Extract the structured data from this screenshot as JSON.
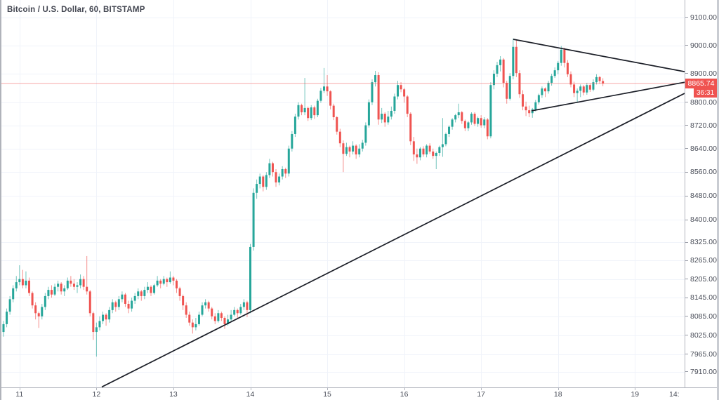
{
  "header": {
    "symbol_title": "Bitcoin / U.S. Dollar, 60, BITSTAMP"
  },
  "chart_data": {
    "type": "candlestick",
    "title": "Bitcoin / U.S. Dollar, 60, BITSTAMP",
    "symbol": "Bitcoin / U.S. Dollar",
    "interval": "60",
    "exchange": "BITSTAMP",
    "scale": "log",
    "grid": true,
    "price_axis_ticks": [
      "9100.00",
      "9000.00",
      "8900.00",
      "8800.00",
      "8720.00",
      "8640.00",
      "8560.00",
      "8480.00",
      "8400.00",
      "8325.00",
      "8265.00",
      "8205.00",
      "8145.00",
      "8085.00",
      "8025.00",
      "7965.00",
      "7910.00"
    ],
    "time_axis_labels": [
      "11",
      "12",
      "13",
      "14",
      "15",
      "16",
      "17",
      "18",
      "19"
    ],
    "clipped_time_label": "14:",
    "last_price": 8865.74,
    "last_price_text": "8865.74",
    "countdown": "36:31",
    "ylim": [
      7857,
      9140
    ],
    "colors": {
      "up": "#26a69a",
      "down": "#ef5350",
      "last_price_line": "#ef5350",
      "last_price_box": "#ef5350",
      "trendline": "#1b1e27",
      "grid": "#f0f3fa",
      "axis_text": "#4a4e59"
    },
    "trendlines": [
      {
        "name": "ascending-support-line",
        "x1_hour": 30.67,
        "price1": 7862,
        "x2_hour": 212.49,
        "price2": 8831
      },
      {
        "name": "triangle-upper-line",
        "x1_hour": 159.04,
        "price1": 9022,
        "x2_hour": 212.49,
        "price2": 8907
      },
      {
        "name": "triangle-lower-line",
        "x1_hour": 164.73,
        "price1": 8770,
        "x2_hour": 212.49,
        "price2": 8870
      }
    ],
    "candles": [
      [
        8035,
        8070,
        8020,
        8060
      ],
      [
        8060,
        8110,
        8050,
        8100
      ],
      [
        8100,
        8150,
        8090,
        8140
      ],
      [
        8140,
        8185,
        8130,
        8175
      ],
      [
        8175,
        8215,
        8165,
        8195
      ],
      [
        8195,
        8250,
        8185,
        8205
      ],
      [
        8205,
        8235,
        8175,
        8185
      ],
      [
        8185,
        8230,
        8175,
        8200
      ],
      [
        8200,
        8210,
        8150,
        8160
      ],
      [
        8160,
        8165,
        8110,
        8120
      ],
      [
        8120,
        8130,
        8075,
        8095
      ],
      [
        8095,
        8100,
        8048,
        8085
      ],
      [
        8085,
        8125,
        8075,
        8115
      ],
      [
        8115,
        8160,
        8105,
        8150
      ],
      [
        8150,
        8180,
        8140,
        8170
      ],
      [
        8170,
        8185,
        8145,
        8155
      ],
      [
        8155,
        8190,
        8150,
        8180
      ],
      [
        8180,
        8200,
        8165,
        8190
      ],
      [
        8190,
        8195,
        8155,
        8165
      ],
      [
        8165,
        8185,
        8150,
        8175
      ],
      [
        8175,
        8210,
        8170,
        8200
      ],
      [
        8200,
        8215,
        8180,
        8190
      ],
      [
        8190,
        8205,
        8170,
        8180
      ],
      [
        8180,
        8195,
        8160,
        8185
      ],
      [
        8185,
        8220,
        8175,
        8205
      ],
      [
        8205,
        8215,
        8170,
        8180
      ],
      [
        8180,
        8280,
        8155,
        8165
      ],
      [
        8165,
        8170,
        8085,
        8095
      ],
      [
        8095,
        8100,
        8010,
        8035
      ],
      [
        8035,
        8065,
        7957,
        8050
      ],
      [
        8050,
        8085,
        8040,
        8070
      ],
      [
        8070,
        8100,
        8060,
        8090
      ],
      [
        8090,
        8095,
        8055,
        8075
      ],
      [
        8075,
        8115,
        8065,
        8105
      ],
      [
        8105,
        8140,
        8095,
        8130
      ],
      [
        8130,
        8135,
        8100,
        8115
      ],
      [
        8115,
        8150,
        8105,
        8140
      ],
      [
        8140,
        8165,
        8130,
        8155
      ],
      [
        8155,
        8160,
        8115,
        8125
      ],
      [
        8125,
        8135,
        8095,
        8110
      ],
      [
        8110,
        8145,
        8100,
        8135
      ],
      [
        8135,
        8160,
        8125,
        8150
      ],
      [
        8150,
        8175,
        8140,
        8165
      ],
      [
        8165,
        8170,
        8135,
        8150
      ],
      [
        8150,
        8180,
        8140,
        8170
      ],
      [
        8170,
        8195,
        8160,
        8180
      ],
      [
        8180,
        8185,
        8150,
        8160
      ],
      [
        8160,
        8190,
        8155,
        8185
      ],
      [
        8185,
        8215,
        8180,
        8200
      ],
      [
        8200,
        8205,
        8175,
        8190
      ],
      [
        8190,
        8215,
        8185,
        8205
      ],
      [
        8205,
        8210,
        8180,
        8195
      ],
      [
        8195,
        8230,
        8190,
        8210
      ],
      [
        8210,
        8215,
        8185,
        8200
      ],
      [
        8200,
        8205,
        8160,
        8175
      ],
      [
        8175,
        8180,
        8135,
        8150
      ],
      [
        8150,
        8155,
        8105,
        8120
      ],
      [
        8120,
        8130,
        8080,
        8090
      ],
      [
        8090,
        8100,
        8055,
        8065
      ],
      [
        8065,
        8075,
        8030,
        8050
      ],
      [
        8050,
        8080,
        8040,
        8060
      ],
      [
        8060,
        8100,
        8055,
        8090
      ],
      [
        8090,
        8130,
        8085,
        8120
      ],
      [
        8120,
        8140,
        8110,
        8130
      ],
      [
        8130,
        8135,
        8100,
        8110
      ],
      [
        8110,
        8115,
        8075,
        8085
      ],
      [
        8085,
        8095,
        8060,
        8070
      ],
      [
        8070,
        8105,
        8065,
        8095
      ],
      [
        8095,
        8100,
        8070,
        8080
      ],
      [
        8080,
        8085,
        8045,
        8060
      ],
      [
        8060,
        8090,
        8055,
        8075
      ],
      [
        8075,
        8105,
        8070,
        8090
      ],
      [
        8090,
        8115,
        8085,
        8105
      ],
      [
        8105,
        8110,
        8080,
        8095
      ],
      [
        8095,
        8125,
        8090,
        8115
      ],
      [
        8115,
        8140,
        8105,
        8130
      ],
      [
        8130,
        8135,
        8082,
        8105
      ],
      [
        8105,
        8320,
        8095,
        8310
      ],
      [
        8310,
        8505,
        8298,
        8490
      ],
      [
        8490,
        8535,
        8470,
        8520
      ],
      [
        8520,
        8555,
        8505,
        8545
      ],
      [
        8545,
        8550,
        8495,
        8510
      ],
      [
        8510,
        8560,
        8500,
        8550
      ],
      [
        8550,
        8605,
        8540,
        8590
      ],
      [
        8590,
        8595,
        8545,
        8560
      ],
      [
        8560,
        8570,
        8510,
        8525
      ],
      [
        8525,
        8555,
        8515,
        8545
      ],
      [
        8545,
        8580,
        8535,
        8570
      ],
      [
        8570,
        8575,
        8540,
        8555
      ],
      [
        8555,
        8650,
        8545,
        8640
      ],
      [
        8640,
        8700,
        8630,
        8690
      ],
      [
        8690,
        8760,
        8680,
        8750
      ],
      [
        8750,
        8800,
        8740,
        8790
      ],
      [
        8790,
        8795,
        8755,
        8765
      ],
      [
        8765,
        8885,
        8755,
        8780
      ],
      [
        8780,
        8785,
        8735,
        8745
      ],
      [
        8745,
        8790,
        8738,
        8782
      ],
      [
        8782,
        8788,
        8742,
        8755
      ],
      [
        8755,
        8812,
        8748,
        8805
      ],
      [
        8805,
        8850,
        8798,
        8840
      ],
      [
        8840,
        8920,
        8832,
        8855
      ],
      [
        8855,
        8895,
        8822,
        8838
      ],
      [
        8838,
        8842,
        8775,
        8788
      ],
      [
        8788,
        8795,
        8738,
        8748
      ],
      [
        8748,
        8752,
        8688,
        8698
      ],
      [
        8698,
        8708,
        8645,
        8658
      ],
      [
        8658,
        8668,
        8560,
        8622
      ],
      [
        8622,
        8660,
        8615,
        8645
      ],
      [
        8645,
        8650,
        8610,
        8630
      ],
      [
        8630,
        8665,
        8620,
        8650
      ],
      [
        8650,
        8655,
        8605,
        8620
      ],
      [
        8620,
        8655,
        8610,
        8640
      ],
      [
        8640,
        8670,
        8630,
        8660
      ],
      [
        8660,
        8730,
        8650,
        8720
      ],
      [
        8720,
        8810,
        8712,
        8800
      ],
      [
        8800,
        8880,
        8790,
        8870
      ],
      [
        8870,
        8910,
        8855,
        8895
      ],
      [
        8895,
        8905,
        8722,
        8740
      ],
      [
        8740,
        8780,
        8728,
        8760
      ],
      [
        8760,
        8765,
        8715,
        8730
      ],
      [
        8730,
        8770,
        8722,
        8750
      ],
      [
        8750,
        8785,
        8740,
        8770
      ],
      [
        8770,
        8830,
        8760,
        8820
      ],
      [
        8820,
        8875,
        8810,
        8860
      ],
      [
        8860,
        8870,
        8835,
        8845
      ],
      [
        8845,
        8850,
        8798,
        8820
      ],
      [
        8820,
        8825,
        8748,
        8760
      ],
      [
        8760,
        8765,
        8652,
        8665
      ],
      [
        8665,
        8680,
        8598,
        8620
      ],
      [
        8620,
        8640,
        8588,
        8610
      ],
      [
        8610,
        8645,
        8600,
        8640
      ],
      [
        8640,
        8648,
        8612,
        8620
      ],
      [
        8620,
        8655,
        8610,
        8650
      ],
      [
        8650,
        8658,
        8622,
        8630
      ],
      [
        8630,
        8640,
        8605,
        8615
      ],
      [
        8615,
        8630,
        8570,
        8625
      ],
      [
        8625,
        8650,
        8615,
        8645
      ],
      [
        8645,
        8745,
        8612,
        8655
      ],
      [
        8655,
        8695,
        8648,
        8690
      ],
      [
        8690,
        8720,
        8680,
        8715
      ],
      [
        8715,
        8745,
        8705,
        8740
      ],
      [
        8740,
        8760,
        8730,
        8755
      ],
      [
        8755,
        8795,
        8745,
        8765
      ],
      [
        8765,
        8770,
        8725,
        8735
      ],
      [
        8735,
        8740,
        8700,
        8710
      ],
      [
        8710,
        8735,
        8700,
        8730
      ],
      [
        8730,
        8765,
        8722,
        8760
      ],
      [
        8760,
        8765,
        8718,
        8725
      ],
      [
        8725,
        8750,
        8715,
        8745
      ],
      [
        8745,
        8755,
        8712,
        8720
      ],
      [
        8720,
        8748,
        8710,
        8740
      ],
      [
        8740,
        8745,
        8672,
        8682
      ],
      [
        8682,
        8870,
        8675,
        8860
      ],
      [
        8860,
        8912,
        8845,
        8900
      ],
      [
        8900,
        8942,
        8888,
        8930
      ],
      [
        8930,
        8962,
        8908,
        8950
      ],
      [
        8950,
        8955,
        8852,
        8868
      ],
      [
        8868,
        8875,
        8795,
        8812
      ],
      [
        8812,
        8902,
        8806,
        8892
      ],
      [
        8892,
        9025,
        8880,
        8995
      ],
      [
        8995,
        9018,
        8888,
        8902
      ],
      [
        8902,
        8912,
        8815,
        8828
      ],
      [
        8828,
        8842,
        8772,
        8785
      ],
      [
        8785,
        8802,
        8752,
        8772
      ],
      [
        8772,
        8788,
        8748,
        8762
      ],
      [
        8762,
        8780,
        8746,
        8775
      ],
      [
        8775,
        8808,
        8768,
        8800
      ],
      [
        8800,
        8830,
        8792,
        8825
      ],
      [
        8825,
        8855,
        8815,
        8848
      ],
      [
        8848,
        8852,
        8818,
        8838
      ],
      [
        8838,
        8875,
        8830,
        8868
      ],
      [
        8868,
        8900,
        8858,
        8892
      ],
      [
        8892,
        8922,
        8885,
        8912
      ],
      [
        8912,
        8945,
        8898,
        8938
      ],
      [
        8938,
        8998,
        8928,
        8985
      ],
      [
        8985,
        8992,
        8922,
        8938
      ],
      [
        8938,
        8948,
        8888,
        8898
      ],
      [
        8898,
        8908,
        8852,
        8862
      ],
      [
        8862,
        8872,
        8818,
        8832
      ],
      [
        8832,
        8848,
        8798,
        8840
      ],
      [
        8840,
        8862,
        8818,
        8855
      ],
      [
        8855,
        8860,
        8824,
        8834
      ],
      [
        8834,
        8868,
        8826,
        8860
      ],
      [
        8860,
        8866,
        8836,
        8844
      ],
      [
        8844,
        8880,
        8838,
        8870
      ],
      [
        8870,
        8898,
        8862,
        8888
      ],
      [
        8888,
        8892,
        8864,
        8874
      ],
      [
        8874,
        8884,
        8856,
        8865.74
      ]
    ]
  }
}
